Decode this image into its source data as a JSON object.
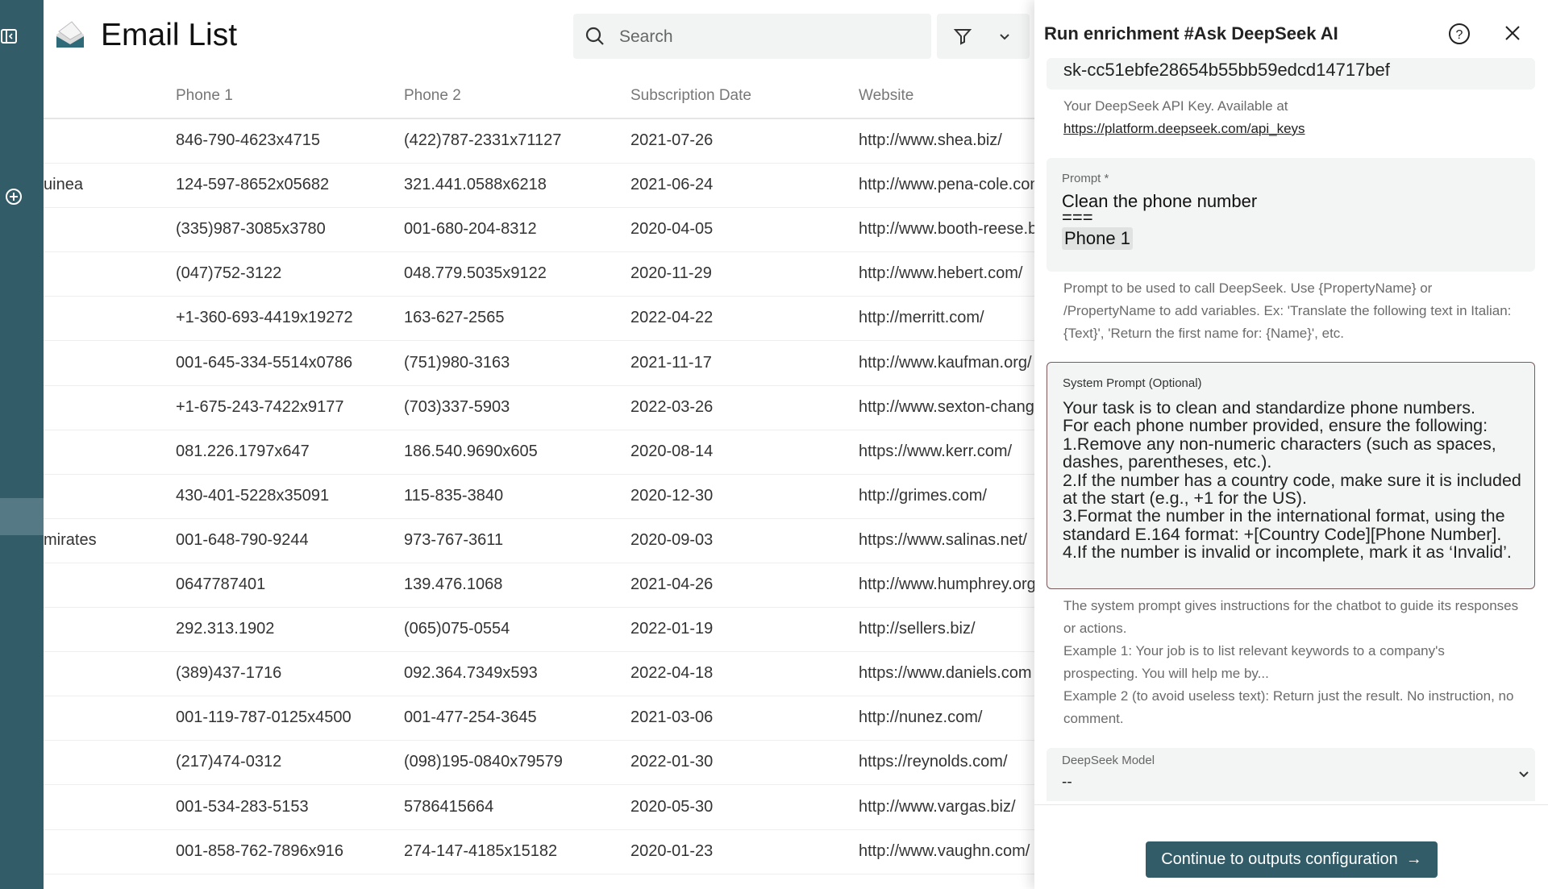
{
  "app": {
    "title": "Email List",
    "search_placeholder": "Search"
  },
  "table": {
    "columns": [
      "Phone 1",
      "Phone 2",
      "Subscription Date",
      "Website"
    ],
    "rows": [
      {
        "left": "",
        "phone1": "846-790-4623x4715",
        "phone2": "(422)787-2331x71127",
        "date": "2021-07-26",
        "website": "http://www.shea.biz/"
      },
      {
        "left": "uinea",
        "phone1": "124-597-8652x05682",
        "phone2": "321.441.0588x6218",
        "date": "2021-06-24",
        "website": "http://www.pena-cole.com"
      },
      {
        "left": "",
        "phone1": "(335)987-3085x3780",
        "phone2": "001-680-204-8312",
        "date": "2020-04-05",
        "website": "http://www.booth-reese.biz"
      },
      {
        "left": "",
        "phone1": "(047)752-3122",
        "phone2": "048.779.5035x9122",
        "date": "2020-11-29",
        "website": "http://www.hebert.com/"
      },
      {
        "left": "",
        "phone1": "+1-360-693-4419x19272",
        "phone2": "163-627-2565",
        "date": "2022-04-22",
        "website": "http://merritt.com/"
      },
      {
        "left": "",
        "phone1": "001-645-334-5514x0786",
        "phone2": "(751)980-3163",
        "date": "2021-11-17",
        "website": "http://www.kaufman.org/"
      },
      {
        "left": "",
        "phone1": "+1-675-243-7422x9177",
        "phone2": "(703)337-5903",
        "date": "2022-03-26",
        "website": "http://www.sexton-chang"
      },
      {
        "left": "",
        "phone1": "081.226.1797x647",
        "phone2": "186.540.9690x605",
        "date": "2020-08-14",
        "website": "https://www.kerr.com/"
      },
      {
        "left": "",
        "phone1": "430-401-5228x35091",
        "phone2": "115-835-3840",
        "date": "2020-12-30",
        "website": "http://grimes.com/"
      },
      {
        "left": "mirates",
        "phone1": "001-648-790-9244",
        "phone2": "973-767-3611",
        "date": "2020-09-03",
        "website": "https://www.salinas.net/"
      },
      {
        "left": "",
        "phone1": "0647787401",
        "phone2": "139.476.1068",
        "date": "2021-04-26",
        "website": "http://www.humphrey.org"
      },
      {
        "left": "",
        "phone1": "292.313.1902",
        "phone2": "(065)075-0554",
        "date": "2022-01-19",
        "website": "http://sellers.biz/"
      },
      {
        "left": "",
        "phone1": "(389)437-1716",
        "phone2": "092.364.7349x593",
        "date": "2022-04-18",
        "website": "https://www.daniels.com"
      },
      {
        "left": "",
        "phone1": "001-119-787-0125x4500",
        "phone2": "001-477-254-3645",
        "date": "2021-03-06",
        "website": "http://nunez.com/"
      },
      {
        "left": "",
        "phone1": "(217)474-0312",
        "phone2": "(098)195-0840x79579",
        "date": "2022-01-30",
        "website": "https://reynolds.com/"
      },
      {
        "left": "",
        "phone1": "001-534-283-5153",
        "phone2": "5786415664",
        "date": "2020-05-30",
        "website": "http://www.vargas.biz/"
      },
      {
        "left": "",
        "phone1": "001-858-762-7896x916",
        "phone2": "274-147-4185x15182",
        "date": "2020-01-23",
        "website": "http://www.vaughn.com/"
      }
    ]
  },
  "panel": {
    "title": "Run enrichment #Ask DeepSeek AI",
    "api_key_value": "sk-cc51ebfe28654b55bb59edcd14717bef",
    "api_key_help": "Your DeepSeek API Key. Available at",
    "api_key_link": "https://platform.deepseek.com/api_keys",
    "prompt_label": "Prompt *",
    "prompt_line1": "Clean the phone number",
    "prompt_line2": "===",
    "prompt_chip": "Phone 1",
    "prompt_help": "Prompt to be used to call DeepSeek. Use {PropertyName} or /PropertyName to add variables. Ex: 'Translate the following text in Italian: {Text}', 'Return the first name for: {Name}', etc.",
    "system_label": "System Prompt (Optional)",
    "system_value": "Your task is to clean and standardize phone numbers.\nFor each phone number provided, ensure the following:\n1.Remove any non-numeric characters (such as spaces, dashes, parentheses, etc.).\n2.If the number has a country code, make sure it is included at the start (e.g., +1 for the US).\n3.Format the number in the international format, using the standard E.164 format: +[Country Code][Phone Number].\n4.If the number is invalid or incomplete, mark it as ‘Invalid’.",
    "system_help1": "The system prompt gives instructions for the chatbot to guide its responses or actions.",
    "system_help2": "Example 1: Your job is to list relevant keywords to a company's prospecting. You will help me by...",
    "system_help3": "Example 2 (to avoid useless text): Return just the result. No instruction, no comment.",
    "model_label": "DeepSeek Model",
    "model_value": "--",
    "continue_label": "Continue to outputs configuration"
  },
  "colors": {
    "sidebar": "#325c68",
    "button": "#325c68"
  }
}
